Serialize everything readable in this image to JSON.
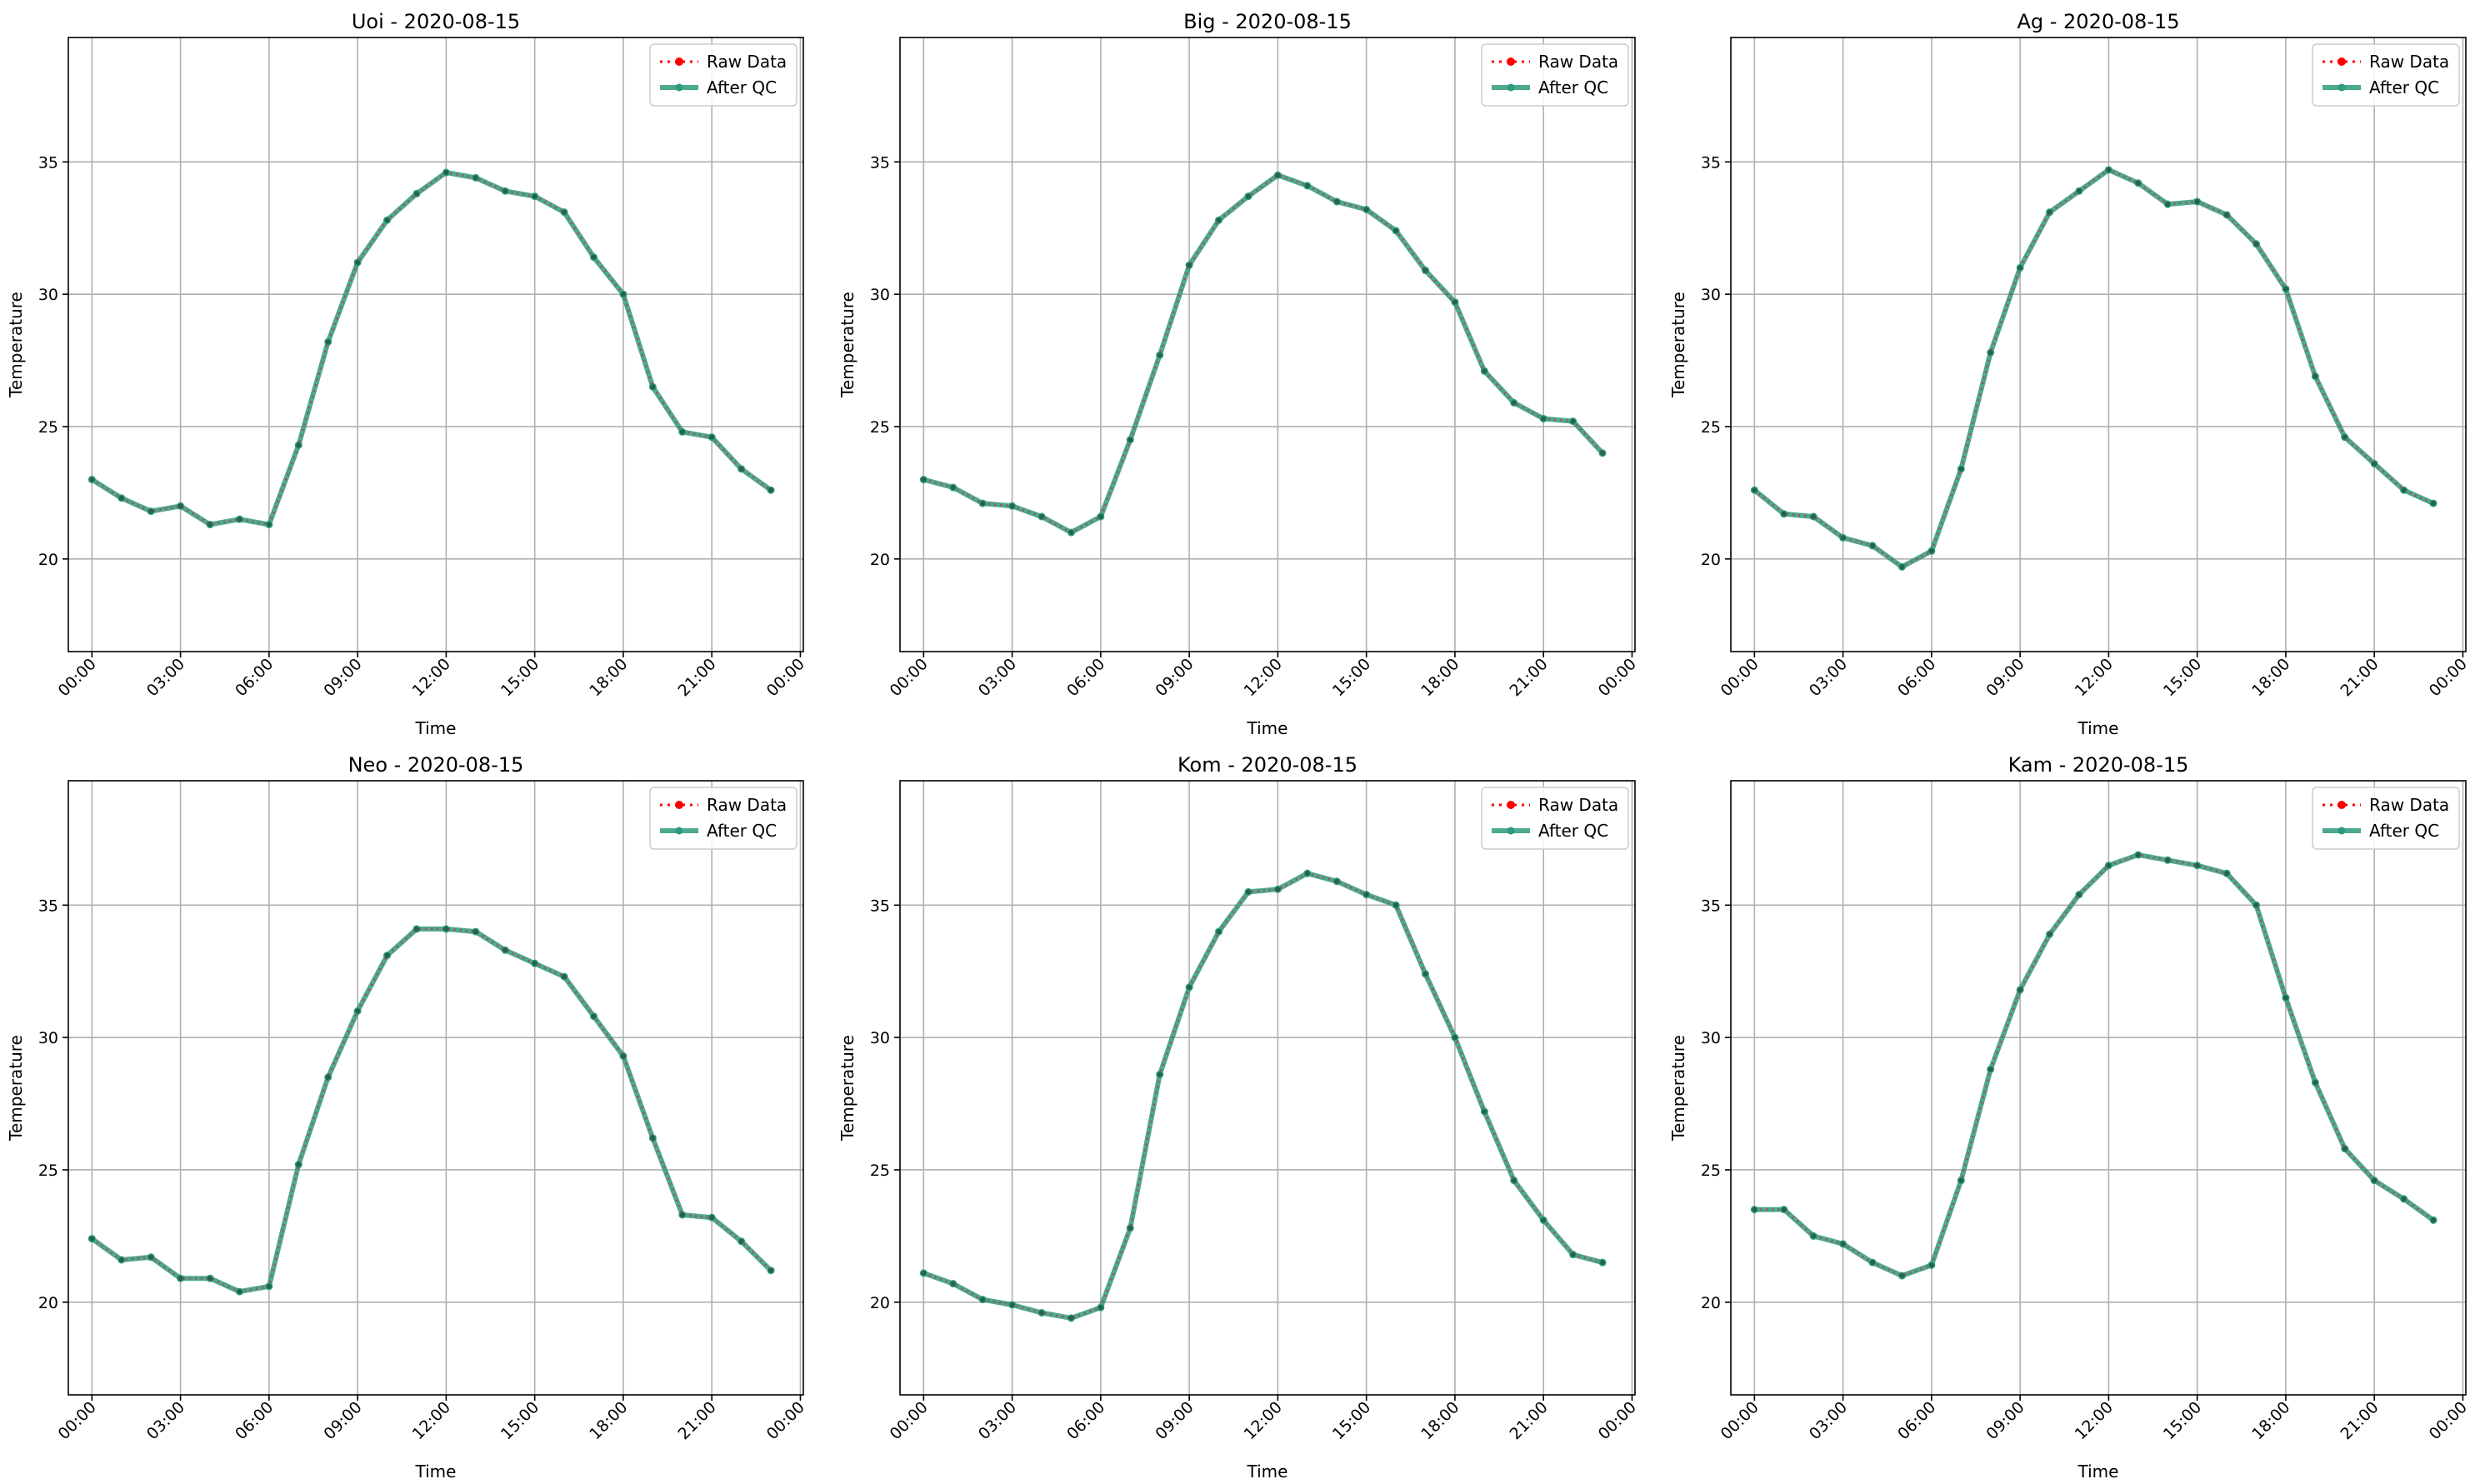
{
  "chart_data": [
    {
      "type": "line",
      "title": "Uoi - 2020-08-15",
      "xlabel": "Time",
      "ylabel": "Temperature",
      "ylim": [
        16.5,
        39.7
      ],
      "yticks": [
        20,
        25,
        30,
        35
      ],
      "xlim": [
        -0.8,
        24.1
      ],
      "xticks": [
        0,
        3,
        6,
        9,
        12,
        15,
        18,
        21,
        24
      ],
      "xticklabels": [
        "00:00",
        "03:00",
        "06:00",
        "09:00",
        "12:00",
        "15:00",
        "18:00",
        "21:00",
        "00:00"
      ],
      "grid": true,
      "legend_position": "top-right",
      "x": [
        0,
        1,
        2,
        3,
        4,
        5,
        6,
        7,
        8,
        9,
        10,
        11,
        12,
        13,
        14,
        15,
        16,
        17,
        18,
        19,
        20,
        21,
        22,
        23
      ],
      "series": [
        {
          "name": "Raw Data",
          "color": "#ff0000",
          "values": [
            23.0,
            22.3,
            21.8,
            22.0,
            21.3,
            21.5,
            21.3,
            24.3,
            28.2,
            31.2,
            32.8,
            33.8,
            34.6,
            34.4,
            33.9,
            33.7,
            33.1,
            31.4,
            30.0,
            26.5,
            24.8,
            24.6,
            23.4,
            22.6
          ]
        },
        {
          "name": "After QC",
          "color": "#2e9a7c",
          "values": [
            23.0,
            22.3,
            21.8,
            22.0,
            21.3,
            21.5,
            21.3,
            24.3,
            28.2,
            31.2,
            32.8,
            33.8,
            34.6,
            34.4,
            33.9,
            33.7,
            33.1,
            31.4,
            30.0,
            26.5,
            24.8,
            24.6,
            23.4,
            22.6
          ]
        }
      ]
    },
    {
      "type": "line",
      "title": "Big - 2020-08-15",
      "xlabel": "Time",
      "ylabel": "Temperature",
      "ylim": [
        16.5,
        39.7
      ],
      "yticks": [
        20,
        25,
        30,
        35
      ],
      "xlim": [
        -0.8,
        24.1
      ],
      "xticks": [
        0,
        3,
        6,
        9,
        12,
        15,
        18,
        21,
        24
      ],
      "xticklabels": [
        "00:00",
        "03:00",
        "06:00",
        "09:00",
        "12:00",
        "15:00",
        "18:00",
        "21:00",
        "00:00"
      ],
      "grid": true,
      "legend_position": "top-right",
      "x": [
        0,
        1,
        2,
        3,
        4,
        5,
        6,
        7,
        8,
        9,
        10,
        11,
        12,
        13,
        14,
        15,
        16,
        17,
        18,
        19,
        20,
        21,
        22,
        23
      ],
      "series": [
        {
          "name": "Raw Data",
          "color": "#ff0000",
          "values": [
            23.0,
            22.7,
            22.1,
            22.0,
            21.6,
            21.0,
            21.6,
            24.5,
            27.7,
            31.1,
            32.8,
            33.7,
            34.5,
            34.1,
            33.5,
            33.2,
            32.4,
            30.9,
            29.7,
            27.1,
            25.9,
            25.3,
            25.2,
            24.0
          ]
        },
        {
          "name": "After QC",
          "color": "#2e9a7c",
          "values": [
            23.0,
            22.7,
            22.1,
            22.0,
            21.6,
            21.0,
            21.6,
            24.5,
            27.7,
            31.1,
            32.8,
            33.7,
            34.5,
            34.1,
            33.5,
            33.2,
            32.4,
            30.9,
            29.7,
            27.1,
            25.9,
            25.3,
            25.2,
            24.0
          ]
        }
      ]
    },
    {
      "type": "line",
      "title": "Ag - 2020-08-15",
      "xlabel": "Time",
      "ylabel": "Temperature",
      "ylim": [
        16.5,
        39.7
      ],
      "yticks": [
        20,
        25,
        30,
        35
      ],
      "xlim": [
        -0.8,
        24.1
      ],
      "xticks": [
        0,
        3,
        6,
        9,
        12,
        15,
        18,
        21,
        24
      ],
      "xticklabels": [
        "00:00",
        "03:00",
        "06:00",
        "09:00",
        "12:00",
        "15:00",
        "18:00",
        "21:00",
        "00:00"
      ],
      "grid": true,
      "legend_position": "top-right",
      "x": [
        0,
        1,
        2,
        3,
        4,
        5,
        6,
        7,
        8,
        9,
        10,
        11,
        12,
        13,
        14,
        15,
        16,
        17,
        18,
        19,
        20,
        21,
        22,
        23
      ],
      "series": [
        {
          "name": "Raw Data",
          "color": "#ff0000",
          "values": [
            22.6,
            21.7,
            21.6,
            20.8,
            20.5,
            19.7,
            20.3,
            23.4,
            27.8,
            31.0,
            33.1,
            33.9,
            34.7,
            34.2,
            33.4,
            33.5,
            33.0,
            31.9,
            30.2,
            26.9,
            24.6,
            23.6,
            22.6,
            22.1
          ]
        },
        {
          "name": "After QC",
          "color": "#2e9a7c",
          "values": [
            22.6,
            21.7,
            21.6,
            20.8,
            20.5,
            19.7,
            20.3,
            23.4,
            27.8,
            31.0,
            33.1,
            33.9,
            34.7,
            34.2,
            33.4,
            33.5,
            33.0,
            31.9,
            30.2,
            26.9,
            24.6,
            23.6,
            22.6,
            22.1
          ]
        }
      ]
    },
    {
      "type": "line",
      "title": "Neo - 2020-08-15",
      "xlabel": "Time",
      "ylabel": "Temperature",
      "ylim": [
        16.5,
        39.7
      ],
      "yticks": [
        20,
        25,
        30,
        35
      ],
      "xlim": [
        -0.8,
        24.1
      ],
      "xticks": [
        0,
        3,
        6,
        9,
        12,
        15,
        18,
        21,
        24
      ],
      "xticklabels": [
        "00:00",
        "03:00",
        "06:00",
        "09:00",
        "12:00",
        "15:00",
        "18:00",
        "21:00",
        "00:00"
      ],
      "grid": true,
      "legend_position": "top-right",
      "x": [
        0,
        1,
        2,
        3,
        4,
        5,
        6,
        7,
        8,
        9,
        10,
        11,
        12,
        13,
        14,
        15,
        16,
        17,
        18,
        19,
        20,
        21,
        22,
        23
      ],
      "series": [
        {
          "name": "Raw Data",
          "color": "#ff0000",
          "values": [
            22.4,
            21.6,
            21.7,
            20.9,
            20.9,
            20.4,
            20.6,
            25.2,
            28.5,
            31.0,
            33.1,
            34.1,
            34.1,
            34.0,
            33.3,
            32.8,
            32.3,
            30.8,
            29.3,
            26.2,
            23.3,
            23.2,
            22.3,
            21.2
          ]
        },
        {
          "name": "After QC",
          "color": "#2e9a7c",
          "values": [
            22.4,
            21.6,
            21.7,
            20.9,
            20.9,
            20.4,
            20.6,
            25.2,
            28.5,
            31.0,
            33.1,
            34.1,
            34.1,
            34.0,
            33.3,
            32.8,
            32.3,
            30.8,
            29.3,
            26.2,
            23.3,
            23.2,
            22.3,
            21.2
          ]
        }
      ]
    },
    {
      "type": "line",
      "title": "Kom - 2020-08-15",
      "xlabel": "Time",
      "ylabel": "Temperature",
      "ylim": [
        16.5,
        39.7
      ],
      "yticks": [
        20,
        25,
        30,
        35
      ],
      "xlim": [
        -0.8,
        24.1
      ],
      "xticks": [
        0,
        3,
        6,
        9,
        12,
        15,
        18,
        21,
        24
      ],
      "xticklabels": [
        "00:00",
        "03:00",
        "06:00",
        "09:00",
        "12:00",
        "15:00",
        "18:00",
        "21:00",
        "00:00"
      ],
      "grid": true,
      "legend_position": "top-right",
      "x": [
        0,
        1,
        2,
        3,
        4,
        5,
        6,
        7,
        8,
        9,
        10,
        11,
        12,
        13,
        14,
        15,
        16,
        17,
        18,
        19,
        20,
        21,
        22,
        23
      ],
      "series": [
        {
          "name": "Raw Data",
          "color": "#ff0000",
          "values": [
            21.1,
            20.7,
            20.1,
            19.9,
            19.6,
            19.4,
            19.8,
            22.8,
            28.6,
            31.9,
            34.0,
            35.5,
            35.6,
            36.2,
            35.9,
            35.4,
            35.0,
            32.4,
            30.0,
            27.2,
            24.6,
            23.1,
            21.8,
            21.5
          ]
        },
        {
          "name": "After QC",
          "color": "#2e9a7c",
          "values": [
            21.1,
            20.7,
            20.1,
            19.9,
            19.6,
            19.4,
            19.8,
            22.8,
            28.6,
            31.9,
            34.0,
            35.5,
            35.6,
            36.2,
            35.9,
            35.4,
            35.0,
            32.4,
            30.0,
            27.2,
            24.6,
            23.1,
            21.8,
            21.5
          ]
        }
      ]
    },
    {
      "type": "line",
      "title": "Kam - 2020-08-15",
      "xlabel": "Time",
      "ylabel": "Temperature",
      "ylim": [
        16.5,
        39.7
      ],
      "yticks": [
        20,
        25,
        30,
        35
      ],
      "xlim": [
        -0.8,
        24.1
      ],
      "xticks": [
        0,
        3,
        6,
        9,
        12,
        15,
        18,
        21,
        24
      ],
      "xticklabels": [
        "00:00",
        "03:00",
        "06:00",
        "09:00",
        "12:00",
        "15:00",
        "18:00",
        "21:00",
        "00:00"
      ],
      "grid": true,
      "legend_position": "top-right",
      "x": [
        0,
        1,
        2,
        3,
        4,
        5,
        6,
        7,
        8,
        9,
        10,
        11,
        12,
        13,
        14,
        15,
        16,
        17,
        18,
        19,
        20,
        21,
        22,
        23
      ],
      "series": [
        {
          "name": "Raw Data",
          "color": "#ff0000",
          "values": [
            23.5,
            23.5,
            22.5,
            22.2,
            21.5,
            21.0,
            21.4,
            24.6,
            28.8,
            31.8,
            33.9,
            35.4,
            36.5,
            36.9,
            36.7,
            36.5,
            36.2,
            35.0,
            31.5,
            28.3,
            25.8,
            24.6,
            23.9,
            23.1
          ]
        },
        {
          "name": "After QC",
          "color": "#2e9a7c",
          "values": [
            23.5,
            23.5,
            22.5,
            22.2,
            21.5,
            21.0,
            21.4,
            24.6,
            28.8,
            31.8,
            33.9,
            35.4,
            36.5,
            36.9,
            36.7,
            36.5,
            36.2,
            35.0,
            31.5,
            28.3,
            25.8,
            24.6,
            23.9,
            23.1
          ]
        }
      ]
    }
  ]
}
